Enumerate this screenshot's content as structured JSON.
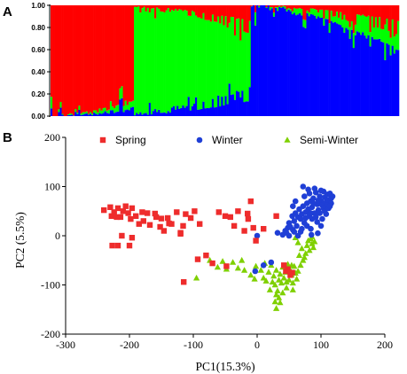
{
  "figure": {
    "panel_a_label": "A",
    "panel_b_label": "B"
  },
  "chart_data": [
    {
      "type": "bar",
      "stacked": true,
      "panel": "A",
      "ylim": [
        0,
        1
      ],
      "yticks": [
        "0.00",
        "0.20",
        "0.40",
        "0.60",
        "0.80",
        "1.00"
      ],
      "cluster_colors": [
        "#ff0000",
        "#00ff00",
        "#0000ff"
      ],
      "groups": [
        {
          "n": 45,
          "major": 0,
          "start": 1.0,
          "end": 0.88,
          "m1": 0.6,
          "m2": 0.4
        },
        {
          "n": 63,
          "major": 1,
          "start": 0.96,
          "end": 0.6,
          "m1": 0.35,
          "m2": 0.65
        },
        {
          "n": 80,
          "major": 2,
          "start": 1.0,
          "end": 0.6,
          "m1": 0.65,
          "m2": 0.35
        }
      ]
    },
    {
      "type": "scatter",
      "panel": "B",
      "xlabel": "PC1(15.3%)",
      "ylabel": "PC2 (5.5%)",
      "xlim": [
        -300,
        200
      ],
      "ylim": [
        -200,
        200
      ],
      "xticks": [
        "-300",
        "-200",
        "-100",
        "0",
        "100",
        "200"
      ],
      "yticks": [
        "-200",
        "-100",
        "0",
        "100",
        "200"
      ],
      "legend_position": "top",
      "series": [
        {
          "name": "Spring",
          "color": "#ee2c2c",
          "marker": "square",
          "points": [
            [
              -240,
              52
            ],
            [
              -230,
              58
            ],
            [
              -228,
              40
            ],
            [
              -224,
              48
            ],
            [
              -218,
              56
            ],
            [
              -214,
              38
            ],
            [
              -210,
              50
            ],
            [
              -206,
              60
            ],
            [
              -202,
              46
            ],
            [
              -198,
              34
            ],
            [
              -196,
              56
            ],
            [
              -190,
              40
            ],
            [
              -185,
              24
            ],
            [
              -180,
              48
            ],
            [
              -172,
              46
            ],
            [
              -168,
              22
            ],
            [
              -158,
              38
            ],
            [
              -152,
              18
            ],
            [
              -146,
              10
            ],
            [
              -140,
              36
            ],
            [
              -134,
              24
            ],
            [
              -126,
              48
            ],
            [
              -120,
              6
            ],
            [
              -116,
              20
            ],
            [
              -112,
              44
            ],
            [
              -104,
              36
            ],
            [
              -98,
              50
            ],
            [
              -90,
              24
            ],
            [
              -80,
              -40
            ],
            [
              -70,
              -56
            ],
            [
              -60,
              48
            ],
            [
              -50,
              40
            ],
            [
              -42,
              38
            ],
            [
              -36,
              20
            ],
            [
              -30,
              50
            ],
            [
              -20,
              10
            ],
            [
              -14,
              34
            ],
            [
              -6,
              16
            ],
            [
              -2,
              -10
            ],
            [
              -227,
              -20
            ],
            [
              -218,
              -20
            ],
            [
              -196,
              -4
            ],
            [
              -212,
              0
            ],
            [
              -115,
              -94
            ],
            [
              -120,
              4
            ],
            [
              -150,
              35
            ],
            [
              10,
              14
            ],
            [
              30,
              40
            ],
            [
              -220,
              38
            ],
            [
              -178,
              30
            ],
            [
              -200,
              -20
            ],
            [
              -160,
              45
            ],
            [
              -138,
              25
            ],
            [
              -93,
              -48
            ],
            [
              -48,
              -62
            ],
            [
              -10,
              70
            ],
            [
              42,
              -60
            ],
            [
              48,
              -68
            ],
            [
              52,
              -80
            ],
            [
              45,
              -72
            ],
            [
              55,
              -75
            ],
            [
              -15,
              45
            ]
          ]
        },
        {
          "name": "Winter",
          "color": "#1f3fd6",
          "marker": "circle",
          "points": [
            [
              0,
              0
            ],
            [
              10,
              -60
            ],
            [
              22,
              -54
            ],
            [
              32,
              6
            ],
            [
              40,
              2
            ],
            [
              44,
              10
            ],
            [
              48,
              16
            ],
            [
              50,
              26
            ],
            [
              52,
              18
            ],
            [
              55,
              40
            ],
            [
              56,
              12
            ],
            [
              58,
              30
            ],
            [
              60,
              46
            ],
            [
              62,
              20
            ],
            [
              64,
              38
            ],
            [
              66,
              54
            ],
            [
              68,
              34
            ],
            [
              70,
              44
            ],
            [
              72,
              60
            ],
            [
              72,
              100
            ],
            [
              74,
              26
            ],
            [
              76,
              48
            ],
            [
              78,
              66
            ],
            [
              80,
              54
            ],
            [
              82,
              40
            ],
            [
              84,
              70
            ],
            [
              86,
              58
            ],
            [
              88,
              76
            ],
            [
              90,
              46
            ],
            [
              92,
              88
            ],
            [
              94,
              64
            ],
            [
              96,
              52
            ],
            [
              98,
              80
            ],
            [
              100,
              70
            ],
            [
              102,
              62
            ],
            [
              104,
              90
            ],
            [
              106,
              78
            ],
            [
              108,
              68
            ],
            [
              110,
              84
            ],
            [
              112,
              72
            ],
            [
              114,
              86
            ],
            [
              116,
              76
            ],
            [
              118,
              80
            ],
            [
              68,
              8
            ],
            [
              64,
              0
            ],
            [
              78,
              20
            ],
            [
              86,
              34
            ],
            [
              92,
              38
            ],
            [
              98,
              46
            ],
            [
              104,
              56
            ],
            [
              110,
              62
            ],
            [
              116,
              66
            ],
            [
              80,
              94
            ],
            [
              90,
              96
            ],
            [
              100,
              92
            ],
            [
              60,
              70
            ],
            [
              56,
              60
            ],
            [
              70,
              14
            ],
            [
              84,
              14
            ],
            [
              94,
              28
            ],
            [
              102,
              34
            ],
            [
              108,
              44
            ],
            [
              74,
              80
            ],
            [
              82,
              86
            ],
            [
              88,
              66
            ],
            [
              96,
              72
            ],
            [
              106,
              50
            ],
            [
              112,
              56
            ],
            [
              114,
              60
            ],
            [
              58,
              8
            ],
            [
              50,
              0
            ],
            [
              46,
              6
            ],
            [
              76,
              36
            ],
            [
              84,
              46
            ],
            [
              100,
              20
            ],
            [
              -3,
              -72
            ],
            [
              85,
              2
            ],
            [
              95,
              5
            ]
          ]
        },
        {
          "name": "Semi-Winter",
          "color": "#7fd000",
          "marker": "triangle",
          "points": [
            [
              -95,
              -86
            ],
            [
              -74,
              -50
            ],
            [
              -62,
              -64
            ],
            [
              -54,
              -52
            ],
            [
              -48,
              -68
            ],
            [
              -38,
              -54
            ],
            [
              -30,
              -66
            ],
            [
              -24,
              -50
            ],
            [
              -20,
              -70
            ],
            [
              -10,
              -80
            ],
            [
              -4,
              -88
            ],
            [
              6,
              -70
            ],
            [
              12,
              -56
            ],
            [
              18,
              -74
            ],
            [
              22,
              -60
            ],
            [
              24,
              -94
            ],
            [
              26,
              -82
            ],
            [
              28,
              -100
            ],
            [
              28,
              -134
            ],
            [
              30,
              -120
            ],
            [
              30,
              -148
            ],
            [
              32,
              -112
            ],
            [
              34,
              -90
            ],
            [
              36,
              -78
            ],
            [
              38,
              -96
            ],
            [
              40,
              -64
            ],
            [
              42,
              -86
            ],
            [
              44,
              -74
            ],
            [
              46,
              -106
            ],
            [
              48,
              -58
            ],
            [
              50,
              -90
            ],
            [
              52,
              -70
            ],
            [
              54,
              -80
            ],
            [
              56,
              -96
            ],
            [
              58,
              -62
            ],
            [
              60,
              -76
            ],
            [
              62,
              -88
            ],
            [
              64,
              -72
            ],
            [
              66,
              -40
            ],
            [
              70,
              -26
            ],
            [
              72,
              -50
            ],
            [
              76,
              -36
            ],
            [
              78,
              -20
            ],
            [
              80,
              -10
            ],
            [
              82,
              -30
            ],
            [
              84,
              -6
            ],
            [
              86,
              -16
            ],
            [
              88,
              -24
            ],
            [
              60,
              -4
            ],
            [
              64,
              -14
            ],
            [
              36,
              -136
            ],
            [
              34,
              -126
            ],
            [
              20,
              -110
            ],
            [
              14,
              -92
            ],
            [
              40,
              -116
            ],
            [
              46,
              -94
            ],
            [
              56,
              -110
            ],
            [
              10,
              -86
            ],
            [
              -2,
              -62
            ],
            [
              30,
              -70
            ],
            [
              54,
              -60
            ],
            [
              68,
              -60
            ],
            [
              74,
              -44
            ],
            [
              86,
              -2
            ],
            [
              90,
              -12
            ]
          ]
        }
      ]
    }
  ]
}
